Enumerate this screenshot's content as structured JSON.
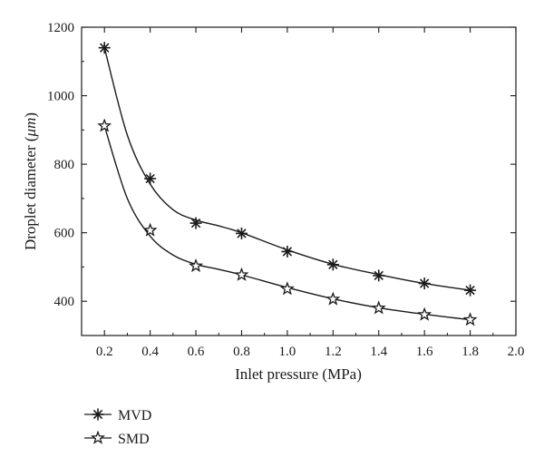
{
  "chart_data": {
    "type": "line",
    "title": "",
    "xlabel": "Inlet pressure (MPa)",
    "ylabel_main": "Droplet diameter (",
    "ylabel_unit": "μm",
    "ylabel_close": ")",
    "xlim": [
      0.1,
      2.0
    ],
    "ylim": [
      300,
      1200
    ],
    "xticks": [
      0.2,
      0.4,
      0.6,
      0.8,
      1.0,
      1.2,
      1.4,
      1.6,
      1.8,
      2.0
    ],
    "xtick_labels": [
      "0.2",
      "0.4",
      "0.6",
      "0.8",
      "1.0",
      "1.2",
      "1.4",
      "1.6",
      "1.8",
      "2.0"
    ],
    "yticks": [
      400,
      600,
      800,
      1000,
      1200
    ],
    "ytick_labels": [
      "400",
      "600",
      "800",
      "1000",
      "1200"
    ],
    "grid": false,
    "legend_position": "bottom-left, outside plot",
    "series": [
      {
        "name": "MVD",
        "marker": "asterisk",
        "x": [
          0.2,
          0.4,
          0.6,
          0.8,
          1.0,
          1.2,
          1.4,
          1.6,
          1.8
        ],
        "values": [
          1140,
          758,
          628,
          598,
          545,
          507,
          475,
          452,
          432
        ],
        "fit_x": [
          0.2,
          0.3,
          0.4,
          0.5,
          0.6,
          0.7,
          0.8,
          1.0,
          1.2,
          1.4,
          1.6,
          1.8
        ],
        "fit_y": [
          1140,
          885,
          742,
          667,
          637,
          620,
          600,
          550,
          508,
          478,
          452,
          432
        ]
      },
      {
        "name": "SMD",
        "marker": "star",
        "x": [
          0.2,
          0.4,
          0.6,
          0.8,
          1.0,
          1.2,
          1.4,
          1.6,
          1.8
        ],
        "values": [
          912,
          607,
          503,
          477,
          436,
          406,
          380,
          361,
          346
        ],
        "fit_x": [
          0.2,
          0.3,
          0.4,
          0.5,
          0.6,
          0.7,
          0.8,
          1.0,
          1.2,
          1.4,
          1.6,
          1.8
        ],
        "fit_y": [
          912,
          700,
          590,
          535,
          508,
          493,
          477,
          440,
          407,
          381,
          362,
          346
        ]
      }
    ]
  }
}
